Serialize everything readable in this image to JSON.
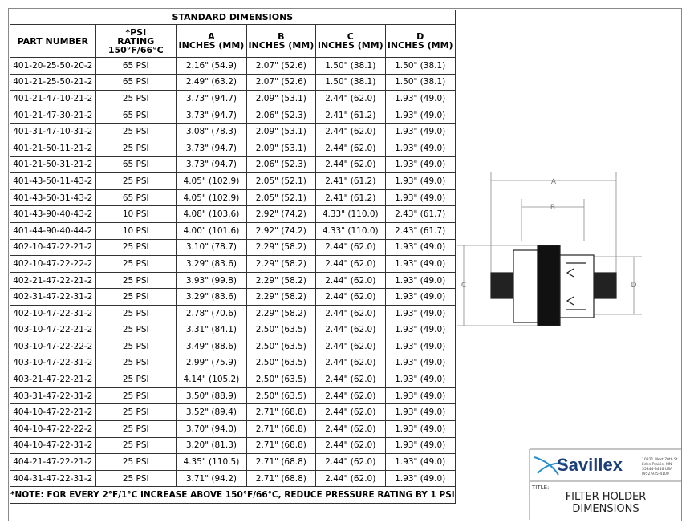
{
  "table": {
    "title": "STANDARD DIMENSIONS",
    "header": [
      [
        "PART NUMBER"
      ],
      [
        "*PSI",
        "RATING",
        "150°F/66°C"
      ],
      [
        "A",
        "INCHES (MM)"
      ],
      [
        "B",
        "INCHES (MM)"
      ],
      [
        "C",
        "INCHES (MM)"
      ],
      [
        "D",
        "INCHES (MM)"
      ]
    ],
    "rows": [
      [
        "401-20-25-50-20-2",
        "65 PSI",
        "2.16\" (54.9)",
        "2.07\" (52.6)",
        "1.50\" (38.1)",
        "1.50\" (38.1)"
      ],
      [
        "401-21-25-50-21-2",
        "65 PSI",
        "2.49\" (63.2)",
        "2.07\" (52.6)",
        "1.50\" (38.1)",
        "1.50\" (38.1)"
      ],
      [
        "401-21-47-10-21-2",
        "25 PSI",
        "3.73\" (94.7)",
        "2.09\" (53.1)",
        "2.44\" (62.0)",
        "1.93\" (49.0)"
      ],
      [
        "401-21-47-30-21-2",
        "65 PSI",
        "3.73\" (94.7)",
        "2.06\" (52.3)",
        "2.41\" (61.2)",
        "1.93\" (49.0)"
      ],
      [
        "401-31-47-10-31-2",
        "25 PSI",
        "3.08\" (78.3)",
        "2.09\" (53.1)",
        "2.44\" (62.0)",
        "1.93\" (49.0)"
      ],
      [
        "401-21-50-11-21-2",
        "25 PSI",
        "3.73\" (94.7)",
        "2.09\" (53.1)",
        "2.44\" (62.0)",
        "1.93\" (49.0)"
      ],
      [
        "401-21-50-31-21-2",
        "65 PSI",
        "3.73\" (94.7)",
        "2.06\" (52.3)",
        "2.44\" (62.0)",
        "1.93\" (49.0)"
      ],
      [
        "401-43-50-11-43-2",
        "25 PSI",
        "4.05\" (102.9)",
        "2.05\" (52.1)",
        "2.41\" (61.2)",
        "1.93\" (49.0)"
      ],
      [
        "401-43-50-31-43-2",
        "65 PSI",
        "4.05\" (102.9)",
        "2.05\" (52.1)",
        "2.41\" (61.2)",
        "1.93\" (49.0)"
      ],
      [
        "401-43-90-40-43-2",
        "10 PSI",
        "4.08\" (103.6)",
        "2.92\" (74.2)",
        "4.33\" (110.0)",
        "2.43\" (61.7)"
      ],
      [
        "401-44-90-40-44-2",
        "10 PSI",
        "4.00\" (101.6)",
        "2.92\" (74.2)",
        "4.33\" (110.0)",
        "2.43\" (61.7)"
      ],
      [
        "402-10-47-22-21-2",
        "25 PSI",
        "3.10\" (78.7)",
        "2.29\" (58.2)",
        "2.44\" (62.0)",
        "1.93\" (49.0)"
      ],
      [
        "402-10-47-22-22-2",
        "25 PSI",
        "3.29\" (83.6)",
        "2.29\" (58.2)",
        "2.44\" (62.0)",
        "1.93\" (49.0)"
      ],
      [
        "402-21-47-22-21-2",
        "25 PSI",
        "3.93\" (99.8)",
        "2.29\" (58.2)",
        "2.44\" (62.0)",
        "1.93\" (49.0)"
      ],
      [
        "402-31-47-22-31-2",
        "25 PSI",
        "3.29\" (83.6)",
        "2.29\" (58.2)",
        "2.44\" (62.0)",
        "1.93\" (49.0)"
      ],
      [
        "402-10-47-22-31-2",
        "25 PSI",
        "2.78\" (70.6)",
        "2.29\" (58.2)",
        "2.44\" (62.0)",
        "1.93\" (49.0)"
      ],
      [
        "403-10-47-22-21-2",
        "25 PSI",
        "3.31\" (84.1)",
        "2.50\" (63.5)",
        "2.44\" (62.0)",
        "1.93\" (49.0)"
      ],
      [
        "403-10-47-22-22-2",
        "25 PSI",
        "3.49\" (88.6)",
        "2.50\" (63.5)",
        "2.44\" (62.0)",
        "1.93\" (49.0)"
      ],
      [
        "403-10-47-22-31-2",
        "25 PSI",
        "2.99\" (75.9)",
        "2.50\" (63.5)",
        "2.44\" (62.0)",
        "1.93\" (49.0)"
      ],
      [
        "403-21-47-22-21-2",
        "25 PSI",
        "4.14\" (105.2)",
        "2.50\" (63.5)",
        "2.44\" (62.0)",
        "1.93\" (49.0)"
      ],
      [
        "403-31-47-22-31-2",
        "25 PSI",
        "3.50\" (88.9)",
        "2.50\" (63.5)",
        "2.44\" (62.0)",
        "1.93\" (49.0)"
      ],
      [
        "404-10-47-22-21-2",
        "25 PSI",
        "3.52\" (89.4)",
        "2.71\" (68.8)",
        "2.44\" (62.0)",
        "1.93\" (49.0)"
      ],
      [
        "404-10-47-22-22-2",
        "25 PSI",
        "3.70\" (94.0)",
        "2.71\" (68.8)",
        "2.44\" (62.0)",
        "1.93\" (49.0)"
      ],
      [
        "404-10-47-22-31-2",
        "25 PSI",
        "3.20\" (81.3)",
        "2.71\" (68.8)",
        "2.44\" (62.0)",
        "1.93\" (49.0)"
      ],
      [
        "404-21-47-22-21-2",
        "25 PSI",
        "4.35\" (110.5)",
        "2.71\" (68.8)",
        "2.44\" (62.0)",
        "1.93\" (49.0)"
      ],
      [
        "404-31-47-22-31-2",
        "25 PSI",
        "3.71\" (94.2)",
        "2.71\" (68.8)",
        "2.44\" (62.0)",
        "1.93\" (49.0)"
      ]
    ],
    "note": "*NOTE: FOR EVERY 2°F/1°C INCREASE ABOVE 150°F/66°C, REDUCE PRESSURE RATING BY 1 PSI"
  },
  "drawing": {
    "labels": [
      "A",
      "B",
      "C",
      "D"
    ]
  },
  "title_block": {
    "company": "Savillex",
    "address": [
      "10321 West 70th St.",
      "Eden Prairie, MN",
      "55344-3446 USA",
      "(952)935-4100"
    ],
    "title_label": "TITLE:",
    "title": [
      "FILTER HOLDER",
      "DIMENSIONS"
    ]
  }
}
